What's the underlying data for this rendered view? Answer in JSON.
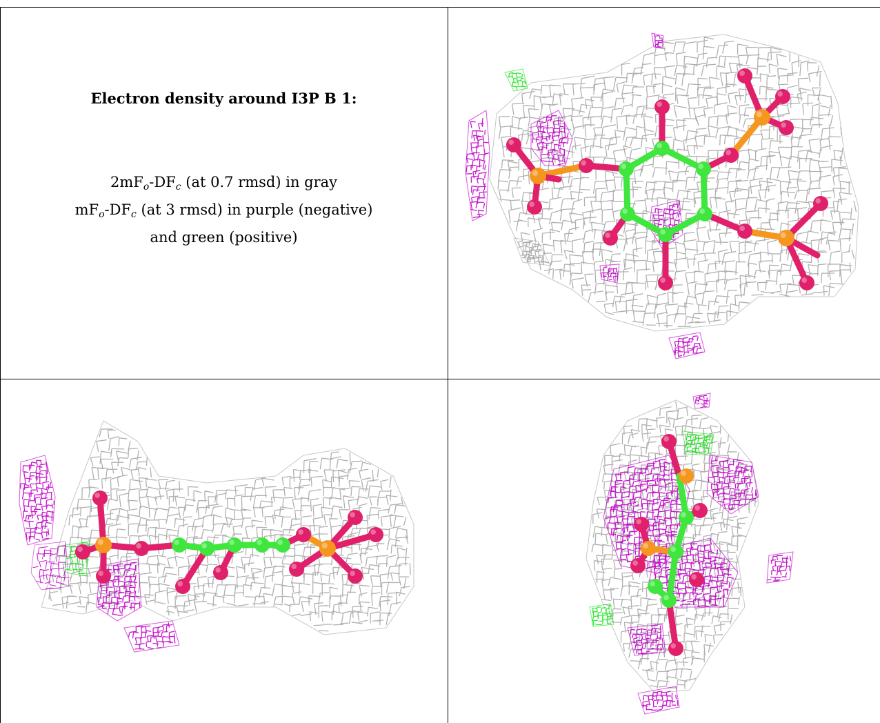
{
  "title": "Electron density around I3P B 1:",
  "legend": [
    {
      "pre": "2mF",
      "s1": "o",
      "mid": "-DF",
      "s2": "c",
      "post": " (at 0.7 rmsd) in gray"
    },
    {
      "pre": "mF",
      "s1": "o",
      "mid": "-DF",
      "s2": "c",
      "post": " (at 3 rmsd) in purple (negative)"
    },
    {
      "text": "and green (positive)"
    }
  ],
  "colors": {
    "mesh_gray": "#a8a8a8",
    "mesh_purple": "#c000c8",
    "mesh_green": "#1ee61e",
    "carbon": "#3ee63e",
    "oxygen": "#e0206a",
    "phosphorus": "#f5961e"
  }
}
